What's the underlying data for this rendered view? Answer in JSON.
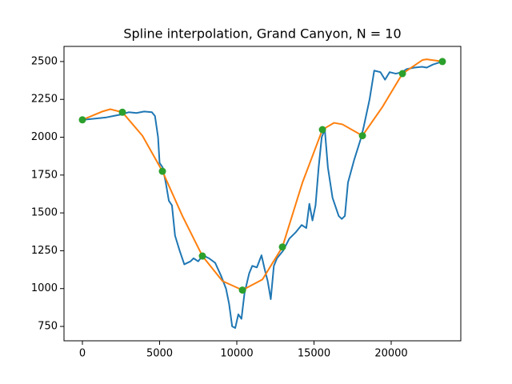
{
  "chart_data": {
    "type": "line",
    "title": "Spline interpolation, Grand Canyon, N = 10",
    "xlim": [
      -1192,
      24508
    ],
    "ylim": [
      655,
      2600
    ],
    "xticks": [
      0,
      5000,
      10000,
      15000,
      20000
    ],
    "yticks": [
      750,
      1000,
      1250,
      1500,
      1750,
      2000,
      2250,
      2500
    ],
    "series": [
      {
        "color": "#1f77b4",
        "marker": "none",
        "line": true,
        "x": [
          0,
          500,
          1000,
          1500,
          2000,
          2500,
          3000,
          3500,
          4000,
          4500,
          4700,
          4900,
          5000,
          5200,
          5400,
          5600,
          5800,
          6000,
          6300,
          6600,
          7000,
          7200,
          7500,
          7800,
          8200,
          8600,
          9000,
          9300,
          9500,
          9700,
          9900,
          10100,
          10300,
          10500,
          10800,
          11000,
          11300,
          11600,
          11800,
          12000,
          12200,
          12400,
          12600,
          13000,
          13400,
          13800,
          14200,
          14500,
          14700,
          14900,
          15100,
          15300,
          15500,
          15700,
          15900,
          16200,
          16600,
          16800,
          17000,
          17200,
          17600,
          18000,
          18200,
          18600,
          18900,
          19300,
          19600,
          19900,
          20300,
          20700,
          21000,
          21500,
          22000,
          22300,
          22700,
          23000,
          23316
        ],
        "values": [
          2115,
          2120,
          2125,
          2130,
          2140,
          2150,
          2165,
          2160,
          2170,
          2165,
          2140,
          2000,
          1830,
          1800,
          1700,
          1580,
          1550,
          1350,
          1250,
          1160,
          1180,
          1200,
          1180,
          1220,
          1200,
          1170,
          1080,
          1000,
          900,
          750,
          740,
          830,
          800,
          970,
          1100,
          1150,
          1140,
          1220,
          1130,
          1050,
          930,
          1150,
          1200,
          1250,
          1330,
          1370,
          1420,
          1400,
          1560,
          1450,
          1550,
          1800,
          2000,
          2050,
          1800,
          1600,
          1480,
          1460,
          1480,
          1700,
          1850,
          1980,
          2060,
          2250,
          2440,
          2430,
          2380,
          2430,
          2420,
          2430,
          2450,
          2460,
          2465,
          2460,
          2480,
          2490,
          2500
        ]
      },
      {
        "color": "#ff7f0e",
        "marker": "none",
        "line": true,
        "x": [
          0,
          1295,
          1800,
          2591,
          3886,
          5182,
          6477,
          7773,
          9068,
          10364,
          11659,
          12955,
          14250,
          15546,
          16300,
          16841,
          18137,
          19432,
          20728,
          22023,
          22300,
          23316
        ],
        "values": [
          2115,
          2170,
          2185,
          2165,
          2010,
          1775,
          1480,
          1215,
          1050,
          990,
          1060,
          1275,
          1700,
          2050,
          2095,
          2085,
          2010,
          2200,
          2420,
          2510,
          2515,
          2500
        ]
      },
      {
        "color": "#2ca02c",
        "marker": "o",
        "line": false,
        "x": [
          0,
          2591,
          5182,
          7773,
          10364,
          12955,
          15546,
          18137,
          20728,
          23316
        ],
        "values": [
          2115,
          2165,
          1775,
          1215,
          990,
          1275,
          2050,
          2010,
          2420,
          2500
        ]
      }
    ]
  }
}
